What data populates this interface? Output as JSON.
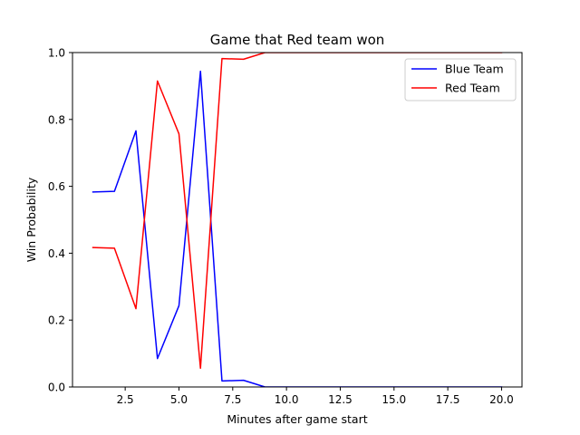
{
  "chart_data": {
    "type": "line",
    "title": "Game that Red team won",
    "xlabel": "Minutes after game start",
    "ylabel": "Win Probability",
    "xlim": [
      0.05,
      20.95
    ],
    "ylim": [
      0.0,
      1.0
    ],
    "xticks": [
      2.5,
      5.0,
      7.5,
      10.0,
      12.5,
      15.0,
      17.5,
      20.0
    ],
    "xtick_labels": [
      "2.5",
      "5.0",
      "7.5",
      "10.0",
      "12.5",
      "15.0",
      "17.5",
      "20.0"
    ],
    "yticks": [
      0.0,
      0.2,
      0.4,
      0.6,
      0.8,
      1.0
    ],
    "ytick_labels": [
      "0.0",
      "0.2",
      "0.4",
      "0.6",
      "0.8",
      "1.0"
    ],
    "grid": false,
    "legend_position": "top-right",
    "x": [
      1,
      2,
      3,
      4,
      5,
      6,
      7,
      8,
      9,
      10,
      11,
      12,
      13,
      14,
      15,
      16,
      17,
      18,
      19,
      20
    ],
    "series": [
      {
        "name": "Blue Team",
        "color": "#0000ff",
        "values": [
          0.583,
          0.585,
          0.766,
          0.085,
          0.243,
          0.944,
          0.018,
          0.02,
          0.0,
          0.0,
          0.0,
          0.0,
          0.0,
          0.0,
          0.0,
          0.0,
          0.0,
          0.0,
          0.0,
          0.0
        ]
      },
      {
        "name": "Red Team",
        "color": "#ff0000",
        "values": [
          0.417,
          0.415,
          0.234,
          0.915,
          0.757,
          0.056,
          0.982,
          0.98,
          1.0,
          1.0,
          1.0,
          1.0,
          1.0,
          1.0,
          1.0,
          1.0,
          1.0,
          1.0,
          1.0,
          1.0
        ]
      }
    ]
  }
}
